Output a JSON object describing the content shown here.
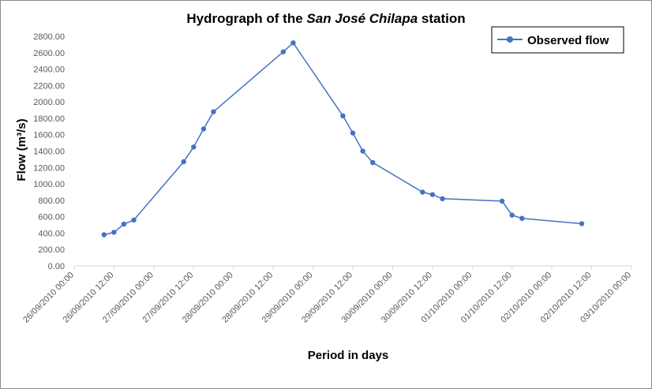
{
  "chart_data": {
    "type": "line",
    "title_prefix": "Hydrograph of the ",
    "title_station": "San José Chilapa",
    "title_suffix": " station",
    "xlabel": "Period in days",
    "ylabel": "Flow (m³/s)",
    "ylim": [
      0,
      2800
    ],
    "y_ticks": [
      "0.00",
      "200.00",
      "400.00",
      "600.00",
      "800.00",
      "1000.00",
      "1200.00",
      "1400.00",
      "1600.00",
      "1800.00",
      "2000.00",
      "2200.00",
      "2400.00",
      "2600.00",
      "2800.00"
    ],
    "x_ticks": [
      "26/09/2010 00:00",
      "26/09/2010 12:00",
      "27/09/2010 00:00",
      "27/09/2010 12:00",
      "28/09/2010 00:00",
      "28/09/2010 12:00",
      "29/09/2010 00:00",
      "29/09/2010 12:00",
      "30/09/2010 00:00",
      "30/09/2010 12:00",
      "01/10/2010 00:00",
      "01/10/2010 12:00",
      "02/10/2010 00:00",
      "02/10/2010 12:00",
      "03/10/2010 00:00"
    ],
    "grid": false,
    "legend_position": "top-right",
    "series": [
      {
        "name": "Observed flow",
        "color": "#4472c4",
        "points": [
          {
            "x": "26/09/2010 09:00",
            "y": 380
          },
          {
            "x": "26/09/2010 12:00",
            "y": 410
          },
          {
            "x": "26/09/2010 15:00",
            "y": 510
          },
          {
            "x": "26/09/2010 18:00",
            "y": 560
          },
          {
            "x": "27/09/2010 09:00",
            "y": 1270
          },
          {
            "x": "27/09/2010 12:00",
            "y": 1450
          },
          {
            "x": "27/09/2010 15:00",
            "y": 1670
          },
          {
            "x": "27/09/2010 18:00",
            "y": 1880
          },
          {
            "x": "28/09/2010 15:00",
            "y": 2610
          },
          {
            "x": "28/09/2010 18:00",
            "y": 2720
          },
          {
            "x": "29/09/2010 09:00",
            "y": 1830
          },
          {
            "x": "29/09/2010 12:00",
            "y": 1620
          },
          {
            "x": "29/09/2010 15:00",
            "y": 1400
          },
          {
            "x": "29/09/2010 18:00",
            "y": 1260
          },
          {
            "x": "30/09/2010 09:00",
            "y": 900
          },
          {
            "x": "30/09/2010 12:00",
            "y": 870
          },
          {
            "x": "30/09/2010 15:00",
            "y": 820
          },
          {
            "x": "01/10/2010 09:00",
            "y": 790
          },
          {
            "x": "01/10/2010 12:00",
            "y": 620
          },
          {
            "x": "01/10/2010 15:00",
            "y": 580
          },
          {
            "x": "02/10/2010 09:00",
            "y": 515
          }
        ]
      }
    ]
  }
}
